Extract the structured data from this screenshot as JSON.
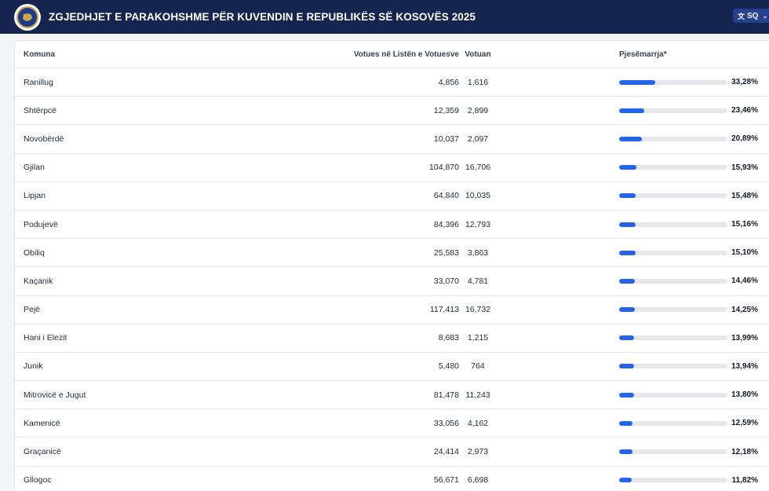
{
  "header": {
    "title": "ZGJEDHJET E PARAKOHSHME PËR KUVENDIN E REPUBLIKËS SË KOSOVËS 2025",
    "language": "SQ",
    "translate_icon": "translate-icon",
    "chevron_icon": "chevron-down-icon"
  },
  "colors": {
    "header_bg": "#16254f",
    "bar_fill": "#2563eb",
    "bar_track": "#e5e7eb"
  },
  "table": {
    "columns": [
      "Komuna",
      "Votues në Listën e Votuesve",
      "Votuan",
      "Pjesëmarrja*"
    ],
    "rows": [
      {
        "name": "Ranillug",
        "registered": "4,856",
        "voted": "1,616",
        "turnout": "33,28%",
        "turnout_value": 33.28
      },
      {
        "name": "Shtërpcë",
        "registered": "12,359",
        "voted": "2,899",
        "turnout": "23,46%",
        "turnout_value": 23.46
      },
      {
        "name": "Novobërdë",
        "registered": "10,037",
        "voted": "2,097",
        "turnout": "20,89%",
        "turnout_value": 20.89
      },
      {
        "name": "Gjilan",
        "registered": "104,870",
        "voted": "16,706",
        "turnout": "15,93%",
        "turnout_value": 15.93
      },
      {
        "name": "Lipjan",
        "registered": "64,840",
        "voted": "10,035",
        "turnout": "15,48%",
        "turnout_value": 15.48
      },
      {
        "name": "Podujevë",
        "registered": "84,396",
        "voted": "12,793",
        "turnout": "15,16%",
        "turnout_value": 15.16
      },
      {
        "name": "Obiliq",
        "registered": "25,583",
        "voted": "3,863",
        "turnout": "15,10%",
        "turnout_value": 15.1
      },
      {
        "name": "Kaçanik",
        "registered": "33,070",
        "voted": "4,781",
        "turnout": "14,46%",
        "turnout_value": 14.46
      },
      {
        "name": "Pejë",
        "registered": "117,413",
        "voted": "16,732",
        "turnout": "14,25%",
        "turnout_value": 14.25
      },
      {
        "name": "Hani i Elezit",
        "registered": "8,683",
        "voted": "1,215",
        "turnout": "13,99%",
        "turnout_value": 13.99
      },
      {
        "name": "Junik",
        "registered": "5,480",
        "voted": "764",
        "turnout": "13,94%",
        "turnout_value": 13.94
      },
      {
        "name": "Mitrovicë e Jugut",
        "registered": "81,478",
        "voted": "11,243",
        "turnout": "13,80%",
        "turnout_value": 13.8
      },
      {
        "name": "Kamenicë",
        "registered": "33,056",
        "voted": "4,162",
        "turnout": "12,59%",
        "turnout_value": 12.59
      },
      {
        "name": "Graçanicë",
        "registered": "24,414",
        "voted": "2,973",
        "turnout": "12,18%",
        "turnout_value": 12.18
      },
      {
        "name": "Gllogoc",
        "registered": "56,671",
        "voted": "6,698",
        "turnout": "11,82%",
        "turnout_value": 11.82
      }
    ]
  }
}
